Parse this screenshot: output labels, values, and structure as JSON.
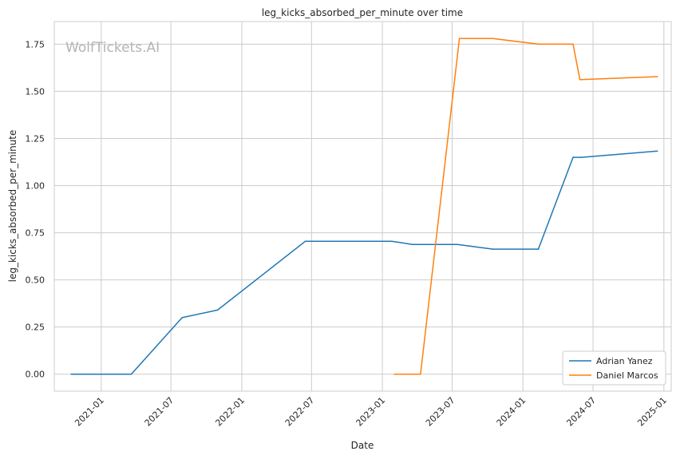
{
  "chart_data": {
    "type": "line",
    "title": "leg_kicks_absorbed_per_minute over time",
    "xlabel": "Date",
    "ylabel": "leg_kicks_absorbed_per_minute",
    "watermark": "WolfTickets.AI",
    "x_ticks": [
      "2021-01",
      "2021-07",
      "2022-01",
      "2022-07",
      "2023-01",
      "2023-07",
      "2024-01",
      "2024-07",
      "2025-01"
    ],
    "y_ticks": [
      "0.00",
      "0.25",
      "0.50",
      "0.75",
      "1.00",
      "1.25",
      "1.50",
      "1.75"
    ],
    "ylim": [
      -0.09,
      1.87
    ],
    "xlim": [
      "2020-09-01",
      "2025-01-20"
    ],
    "grid": true,
    "legend_position": "lower right",
    "series": [
      {
        "name": "Adrian Yanez",
        "color": "#1f77b4",
        "points": [
          {
            "x": "2020-10-15",
            "y": 0.0
          },
          {
            "x": "2021-03-20",
            "y": 0.0
          },
          {
            "x": "2021-07-30",
            "y": 0.3
          },
          {
            "x": "2021-10-30",
            "y": 0.34
          },
          {
            "x": "2022-06-15",
            "y": 0.705
          },
          {
            "x": "2023-01-25",
            "y": 0.705
          },
          {
            "x": "2023-03-20",
            "y": 0.688
          },
          {
            "x": "2023-07-15",
            "y": 0.688
          },
          {
            "x": "2023-10-15",
            "y": 0.663
          },
          {
            "x": "2024-02-10",
            "y": 0.663
          },
          {
            "x": "2024-05-10",
            "y": 1.15
          },
          {
            "x": "2024-06-01",
            "y": 1.15
          },
          {
            "x": "2024-12-15",
            "y": 1.183
          }
        ]
      },
      {
        "name": "Daniel Marcos",
        "color": "#ff7f0e",
        "points": [
          {
            "x": "2023-02-01",
            "y": 0.0
          },
          {
            "x": "2023-04-10",
            "y": 0.0
          },
          {
            "x": "2023-07-20",
            "y": 1.78
          },
          {
            "x": "2023-10-15",
            "y": 1.78
          },
          {
            "x": "2024-02-10",
            "y": 1.75
          },
          {
            "x": "2024-05-10",
            "y": 1.75
          },
          {
            "x": "2024-05-28",
            "y": 1.562
          },
          {
            "x": "2024-12-15",
            "y": 1.578
          }
        ]
      }
    ]
  }
}
